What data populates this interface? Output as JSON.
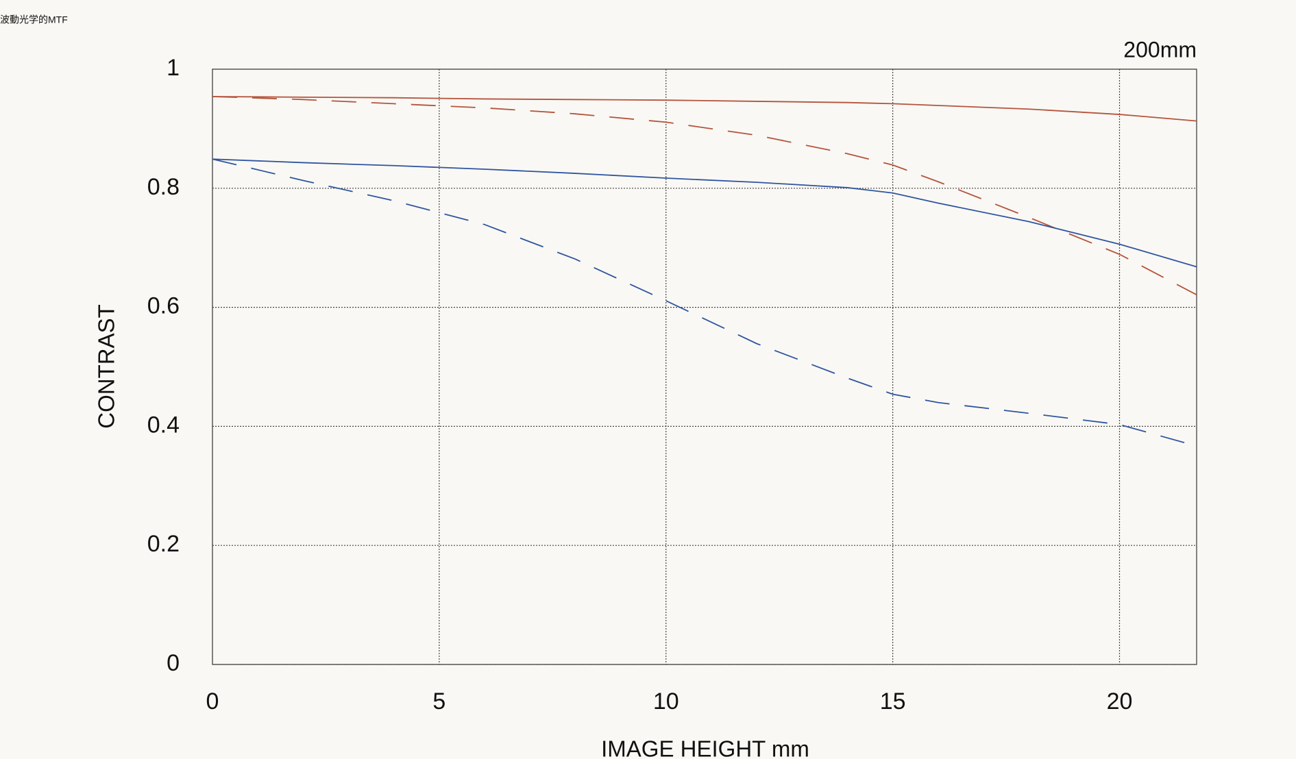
{
  "page_title": "波動光学的MTF",
  "chart_data": {
    "type": "line",
    "annotation": "200mm",
    "x_label": "IMAGE HEIGHT  mm",
    "y_label": "CONTRAST",
    "x": [
      0,
      2,
      4,
      6,
      8,
      10,
      12,
      14,
      15,
      16,
      18,
      20,
      21.7
    ],
    "series": [
      {
        "color": "#b5533c",
        "dashed": false,
        "values": [
          0.954,
          0.953,
          0.952,
          0.95,
          0.949,
          0.948,
          0.946,
          0.944,
          0.942,
          0.939,
          0.933,
          0.924,
          0.913
        ]
      },
      {
        "color": "#b5533c",
        "dashed": true,
        "values": [
          0.954,
          0.949,
          0.942,
          0.935,
          0.925,
          0.911,
          0.889,
          0.858,
          0.839,
          0.811,
          0.751,
          0.689,
          0.621
        ]
      },
      {
        "color": "#2f54a0",
        "dashed": false,
        "values": [
          0.849,
          0.843,
          0.838,
          0.832,
          0.825,
          0.817,
          0.81,
          0.801,
          0.792,
          0.775,
          0.744,
          0.706,
          0.668
        ]
      },
      {
        "color": "#2f54a0",
        "dashed": true,
        "values": [
          0.849,
          0.813,
          0.779,
          0.739,
          0.681,
          0.611,
          0.539,
          0.481,
          0.454,
          0.44,
          0.422,
          0.403,
          0.367
        ]
      }
    ],
    "xlim": [
      0,
      21.7
    ],
    "ylim": [
      0,
      1
    ],
    "xticks": [
      0,
      5,
      10,
      15,
      20
    ],
    "yticks": [
      0,
      0.2,
      0.4,
      0.6,
      0.8,
      1
    ],
    "grid": true
  }
}
